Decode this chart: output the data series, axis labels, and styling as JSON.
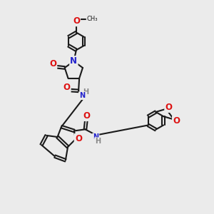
{
  "bg": "#ebebeb",
  "bc": "#1a1a1a",
  "bw": 1.5,
  "dbg": 0.06,
  "O_color": "#dd1111",
  "N_color": "#2222cc",
  "fs": 8.5,
  "fs_small": 7.0,
  "xlim": [
    0,
    10
  ],
  "ylim": [
    0,
    10
  ]
}
